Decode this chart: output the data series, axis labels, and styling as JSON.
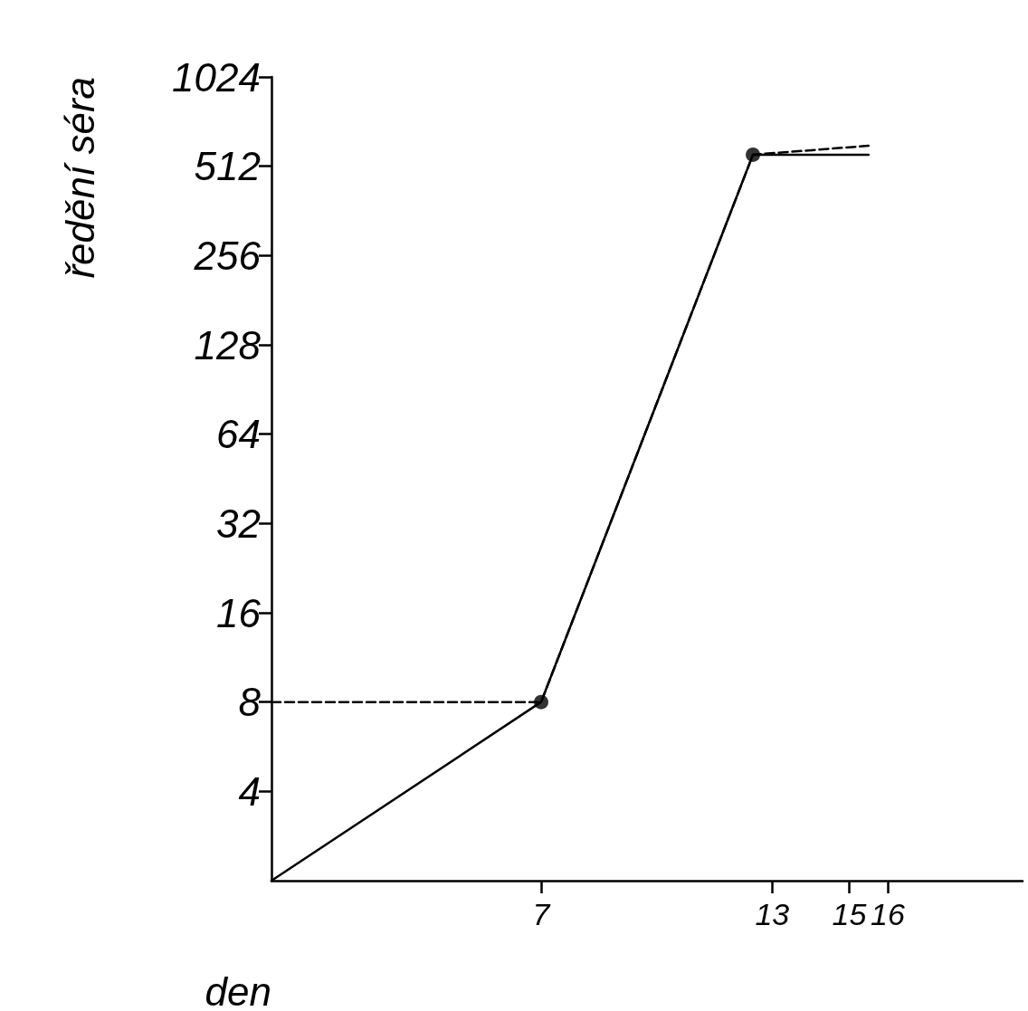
{
  "chart_data": {
    "type": "line",
    "xlabel": "den",
    "ylabel": "ředění séra",
    "series": [
      {
        "color": "#000000",
        "x": [
          0,
          7,
          12.5,
          15.5
        ],
        "values": [
          2,
          8,
          560,
          560
        ],
        "line_style": "solid",
        "marker": "none"
      },
      {
        "color": "#000000",
        "x": [
          0,
          7,
          12.5,
          15.5
        ],
        "values": [
          8,
          8,
          560,
          600
        ],
        "line_style": "dashed",
        "marker": "none"
      },
      {
        "type": "scatter",
        "color": "#000000",
        "x": [
          7,
          12.5
        ],
        "values": [
          8,
          560
        ],
        "marker": "circle"
      }
    ],
    "xlim": [
      0,
      19.5
    ],
    "xticks": [
      7,
      13,
      15,
      16
    ],
    "ylim": [
      2,
      1024
    ],
    "yticks": [
      4,
      8,
      16,
      32,
      64,
      128,
      256,
      512,
      1024
    ],
    "log": "y",
    "grid": false
  }
}
